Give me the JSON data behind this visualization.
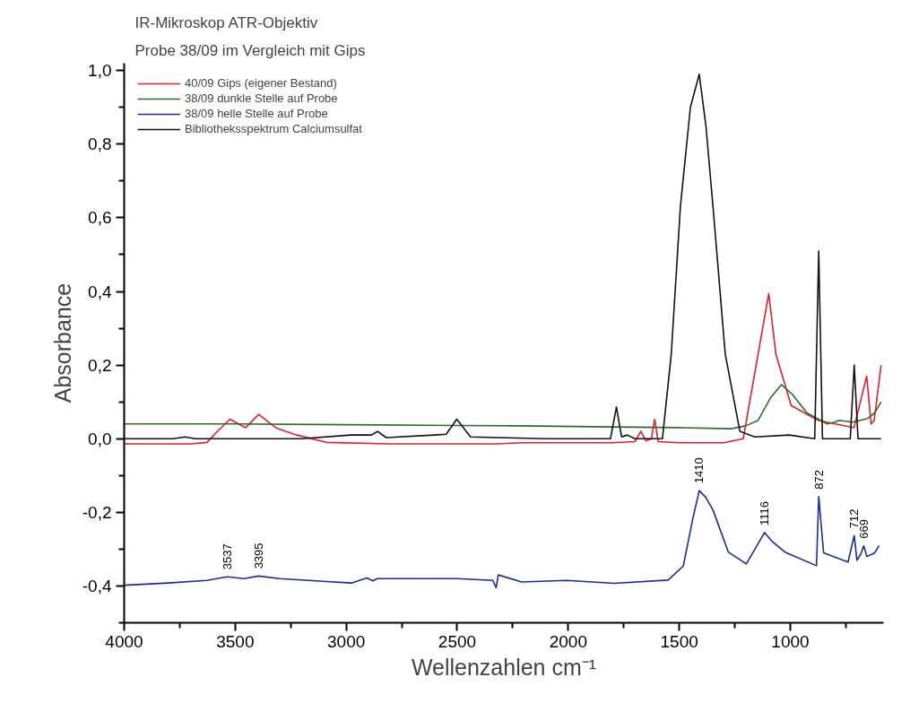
{
  "chart_data": {
    "type": "line",
    "title": "IR-Mikroskop ATR-Objektiv",
    "subtitle": "Probe 38/09 im Vergleich mit Gips",
    "xlabel": "Wellenzahlen cm⁻¹",
    "ylabel": "Absorbance",
    "xlim": [
      4000,
      580
    ],
    "ylim": [
      -0.5,
      1.02
    ],
    "xticks": [
      4000,
      {
        "value": 3750,
        "label": null
      },
      3500,
      {
        "value": 3250,
        "label": null
      },
      3000,
      {
        "value": 2750,
        "label": null
      },
      2500,
      {
        "value": 2250,
        "label": null
      },
      2000,
      {
        "value": 1750,
        "label": null
      },
      1500,
      {
        "value": 1250,
        "label": null
      },
      1000,
      {
        "value": 750,
        "label": null
      }
    ],
    "yticks": [
      {
        "value": -0.5,
        "label": null
      },
      {
        "value": -0.4,
        "label": "-0,4"
      },
      {
        "value": -0.3,
        "label": null
      },
      {
        "value": -0.2,
        "label": "-0,2"
      },
      {
        "value": -0.1,
        "label": null
      },
      {
        "value": 0.0,
        "label": "0,0"
      },
      {
        "value": 0.1,
        "label": null
      },
      {
        "value": 0.2,
        "label": "0,2"
      },
      {
        "value": 0.3,
        "label": null
      },
      {
        "value": 0.4,
        "label": "0,4"
      },
      {
        "value": 0.5,
        "label": null
      },
      {
        "value": 0.6,
        "label": "0,6"
      },
      {
        "value": 0.7,
        "label": null
      },
      {
        "value": 0.8,
        "label": "0,8"
      },
      {
        "value": 0.9,
        "label": null
      },
      {
        "value": 1.0,
        "label": "1,0"
      }
    ],
    "grid": false,
    "legend": "top left",
    "marker": "none",
    "line_style": "solid",
    "series": [
      {
        "name": "40/09 Gips (eigener Bestand)",
        "color": "#e0202c",
        "x": [
          4000,
          3700,
          3627,
          3580,
          3524,
          3453,
          3394,
          3318,
          3223,
          3089,
          2800,
          2324,
          2210,
          1800,
          1700,
          1673,
          1650,
          1625,
          1611,
          1595,
          1500,
          1300,
          1212,
          1145,
          1097,
          1065,
          996,
          875,
          713,
          656,
          636,
          622,
          591
        ],
        "values": [
          -0.014,
          -0.014,
          -0.01,
          0.02,
          0.053,
          0.03,
          0.066,
          0.03,
          0.01,
          -0.01,
          -0.014,
          -0.014,
          -0.011,
          -0.011,
          -0.008,
          0.02,
          -0.006,
          0.0,
          0.053,
          -0.008,
          -0.011,
          -0.011,
          0.0,
          0.23,
          0.394,
          0.23,
          0.09,
          0.05,
          0.03,
          0.17,
          0.04,
          0.05,
          0.2
        ]
      },
      {
        "name": "38/09 dunkle Stelle auf Probe",
        "color": "#2e6b2e",
        "x": [
          4000,
          3500,
          3000,
          2500,
          2210,
          1800,
          1500,
          1267,
          1200,
          1145,
          1090,
          1040,
          990,
          925,
          834,
          800,
          780,
          720,
          652,
          620,
          591
        ],
        "values": [
          0.04,
          0.04,
          0.038,
          0.036,
          0.035,
          0.032,
          0.03,
          0.027,
          0.035,
          0.05,
          0.11,
          0.147,
          0.12,
          0.07,
          0.04,
          0.045,
          0.05,
          0.045,
          0.055,
          0.07,
          0.1
        ]
      },
      {
        "name": "38/09 helle Stelle auf Probe",
        "color": "#1c2aa0",
        "x": [
          4000,
          3800,
          3627,
          3537,
          3460,
          3395,
          3300,
          3089,
          2977,
          2907,
          2880,
          2860,
          2700,
          2500,
          2340,
          2325,
          2315,
          2210,
          2007,
          1793,
          1550,
          1482,
          1440,
          1410,
          1380,
          1348,
          1279,
          1198,
          1150,
          1116,
          1080,
          1024,
          882,
          872,
          850,
          740,
          712,
          700,
          684,
          669,
          655,
          620,
          600
        ],
        "values": [
          -0.398,
          -0.392,
          -0.385,
          -0.375,
          -0.38,
          -0.373,
          -0.38,
          -0.388,
          -0.392,
          -0.378,
          -0.386,
          -0.38,
          -0.38,
          -0.38,
          -0.385,
          -0.405,
          -0.37,
          -0.389,
          -0.385,
          -0.393,
          -0.384,
          -0.346,
          -0.22,
          -0.141,
          -0.16,
          -0.194,
          -0.308,
          -0.34,
          -0.29,
          -0.255,
          -0.28,
          -0.308,
          -0.345,
          -0.157,
          -0.31,
          -0.335,
          -0.263,
          -0.33,
          -0.315,
          -0.291,
          -0.32,
          -0.31,
          -0.29
        ]
      },
      {
        "name": "Bibliotheksspektrum Calciumsulfat",
        "color": "#111111",
        "x": [
          4000,
          3780,
          3725,
          3680,
          3200,
          2980,
          2887,
          2858,
          2820,
          2603,
          2550,
          2502,
          2440,
          2100,
          1810,
          1783,
          1760,
          1735,
          1700,
          1576,
          1536,
          1495,
          1450,
          1410,
          1380,
          1348,
          1293,
          1227,
          1160,
          1005,
          890,
          872,
          855,
          730,
          712,
          695,
          591
        ],
        "values": [
          0.0,
          0.0,
          0.005,
          0.0,
          0.0,
          0.01,
          0.01,
          0.02,
          0.003,
          0.01,
          0.012,
          0.053,
          0.005,
          0.0,
          0.0,
          0.086,
          0.005,
          0.01,
          0.0,
          0.0,
          0.23,
          0.63,
          0.9,
          0.99,
          0.85,
          0.63,
          0.23,
          0.02,
          0.005,
          0.01,
          0.0,
          0.51,
          0.0,
          0.0,
          0.2,
          0.0,
          0.0
        ]
      }
    ],
    "annotations": [
      {
        "text": "3537",
        "x": 3537,
        "y": -0.375
      },
      {
        "text": "3395",
        "x": 3395,
        "y": -0.373
      },
      {
        "text": "1410",
        "x": 1410,
        "y": -0.141
      },
      {
        "text": "1116",
        "x": 1116,
        "y": -0.255
      },
      {
        "text": "872",
        "x": 872,
        "y": -0.157
      },
      {
        "text": "712",
        "x": 712,
        "y": -0.263
      },
      {
        "text": "669",
        "x": 669,
        "y": -0.291
      }
    ]
  }
}
